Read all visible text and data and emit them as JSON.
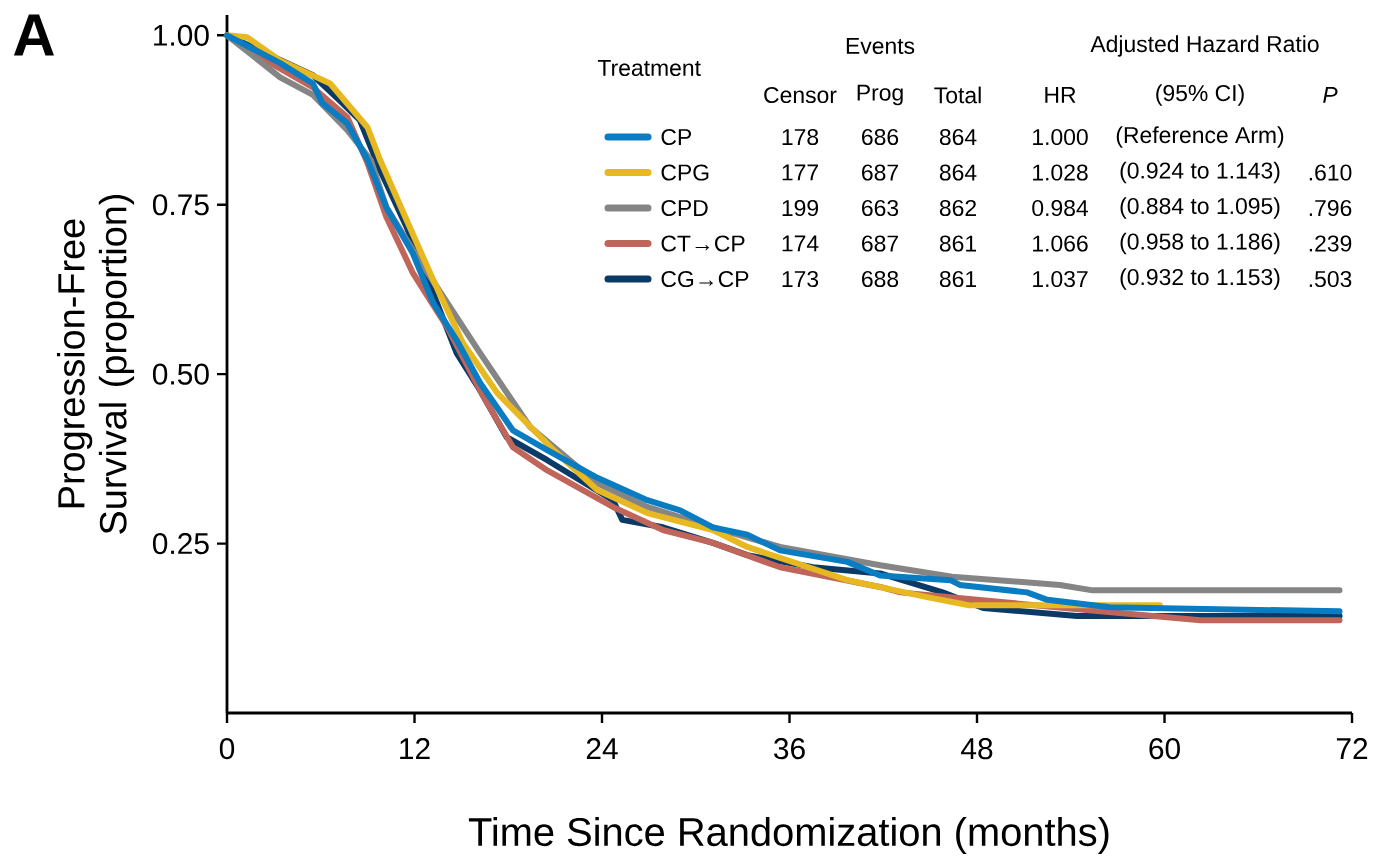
{
  "chart_data": {
    "type": "line",
    "title": "A",
    "xlabel": "Time Since Randomization (months)",
    "ylabel": "Progression-Free Survival (proportion)",
    "xlim": [
      0,
      72
    ],
    "ylim": [
      0,
      1.03
    ],
    "xticks": [
      0,
      12,
      24,
      36,
      48,
      60,
      72
    ],
    "yticks": [
      {
        "value": 0.25,
        "label": "0.25"
      },
      {
        "value": 0.5,
        "label": "0.50"
      },
      {
        "value": 0.75,
        "label": "0.75"
      },
      {
        "value": 1.0,
        "label": "1.00"
      }
    ],
    "legend": "top",
    "series": [
      {
        "name": "CP",
        "color": "#0a7cc2",
        "x": [
          0,
          3.4,
          5.5,
          6.1,
          7.7,
          9,
          10.2,
          11.9,
          13.2,
          14.7,
          16.2,
          18.3,
          20.5,
          23.7,
          26.9,
          29,
          31.1,
          33.3,
          35.4,
          39.7,
          41.8,
          46.3,
          46.9,
          51.2,
          52.5,
          56.5,
          71.2
        ],
        "values": [
          1.0,
          0.959,
          0.929,
          0.9,
          0.87,
          0.816,
          0.746,
          0.678,
          0.605,
          0.55,
          0.487,
          0.417,
          0.388,
          0.347,
          0.314,
          0.299,
          0.274,
          0.263,
          0.24,
          0.223,
          0.203,
          0.196,
          0.189,
          0.178,
          0.167,
          0.156,
          0.15
        ]
      },
      {
        "name": "CPG",
        "color": "#e8b820",
        "x": [
          0,
          1.3,
          3.4,
          6.6,
          9,
          9.8,
          11.5,
          13.2,
          15.1,
          17.3,
          20.9,
          23.7,
          26.9,
          31.1,
          33.3,
          39.7,
          44.8,
          47.5,
          59.7
        ],
        "values": [
          1.0,
          0.997,
          0.963,
          0.929,
          0.864,
          0.816,
          0.727,
          0.639,
          0.546,
          0.472,
          0.388,
          0.329,
          0.295,
          0.27,
          0.245,
          0.196,
          0.171,
          0.159,
          0.159
        ]
      },
      {
        "name": "CPD",
        "color": "#858585",
        "x": [
          0,
          3.4,
          5.5,
          7.7,
          9.2,
          10.2,
          11.9,
          14.1,
          16.2,
          19.4,
          23.7,
          26.9,
          31.1,
          35.4,
          41.8,
          46.4,
          53.3,
          55.4,
          71.2
        ],
        "values": [
          1.0,
          0.938,
          0.912,
          0.86,
          0.816,
          0.746,
          0.683,
          0.605,
          0.531,
          0.422,
          0.339,
          0.304,
          0.274,
          0.245,
          0.218,
          0.201,
          0.189,
          0.181,
          0.181
        ]
      },
      {
        "name": "CT→CP",
        "color": "#c0655a",
        "x": [
          0,
          2.8,
          5.5,
          7.7,
          9,
          10.2,
          11.9,
          14.1,
          16.2,
          18.3,
          20.5,
          24.7,
          27.9,
          31.1,
          35.4,
          41.8,
          43.1,
          48,
          55,
          62.3,
          71.2
        ],
        "values": [
          1.0,
          0.959,
          0.923,
          0.879,
          0.811,
          0.732,
          0.649,
          0.569,
          0.476,
          0.392,
          0.358,
          0.304,
          0.27,
          0.251,
          0.215,
          0.186,
          0.178,
          0.167,
          0.152,
          0.137,
          0.137
        ]
      },
      {
        "name": "CG→CP",
        "color": "#0b3a66",
        "x": [
          0,
          5.5,
          7.2,
          8.5,
          9.8,
          11.5,
          13.2,
          14.7,
          16.2,
          17.9,
          20.5,
          24.7,
          25.3,
          27.9,
          31.1,
          33.3,
          37.5,
          41.8,
          45.8,
          48.4,
          54.4,
          71.2
        ],
        "values": [
          1.0,
          0.941,
          0.904,
          0.875,
          0.801,
          0.717,
          0.619,
          0.531,
          0.476,
          0.407,
          0.373,
          0.314,
          0.285,
          0.274,
          0.251,
          0.233,
          0.215,
          0.206,
          0.178,
          0.155,
          0.143,
          0.143
        ]
      }
    ],
    "annotations": [
      "Treatment",
      "Events",
      "Adjusted Hazard Ratio",
      "Censor",
      "178",
      "177",
      "199",
      "174",
      "173",
      "Prog",
      "686",
      "687",
      "663",
      "687",
      "688",
      "Total",
      "864",
      "864",
      "862",
      "861",
      "861",
      "HR",
      "1.000",
      "1.028",
      "0.984",
      "1.066",
      "1.037",
      "(95% CI)",
      "(Reference Arm)",
      "(0.924 to 1.143)",
      "(0.884 to 1.095)",
      "(0.958 to 1.186)",
      "(0.932 to 1.153)",
      "P",
      ".610",
      ".796",
      ".239",
      ".503"
    ]
  }
}
